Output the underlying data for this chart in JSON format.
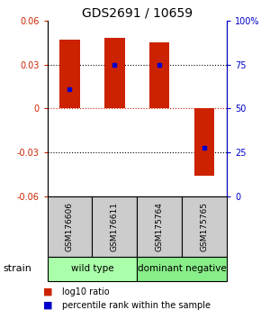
{
  "title": "GDS2691 / 10659",
  "samples": [
    "GSM176606",
    "GSM176611",
    "GSM175764",
    "GSM175765"
  ],
  "bar_values": [
    0.047,
    0.048,
    0.045,
    -0.046
  ],
  "percentile_values": [
    0.013,
    0.03,
    0.03,
    -0.027
  ],
  "ylim": [
    -0.06,
    0.06
  ],
  "yticks_left": [
    -0.06,
    -0.03,
    0,
    0.03,
    0.06
  ],
  "yticks_right": [
    0,
    25,
    50,
    75,
    100
  ],
  "bar_color": "#cc2200",
  "dot_color": "#0000cc",
  "dot_zero_line_color": "#cc2200",
  "grid_color": "black",
  "sample_bg": "#cccccc",
  "group_colors": [
    "#aaffaa",
    "#88ee88"
  ],
  "group_labels": [
    "wild type",
    "dominant negative"
  ],
  "strain_label": "strain",
  "legend_bar_label": "log10 ratio",
  "legend_dot_label": "percentile rank within the sample",
  "title_fontsize": 10,
  "tick_fontsize": 7,
  "sample_fontsize": 6.5,
  "group_fontsize": 7.5,
  "legend_fontsize": 7,
  "strain_fontsize": 8
}
